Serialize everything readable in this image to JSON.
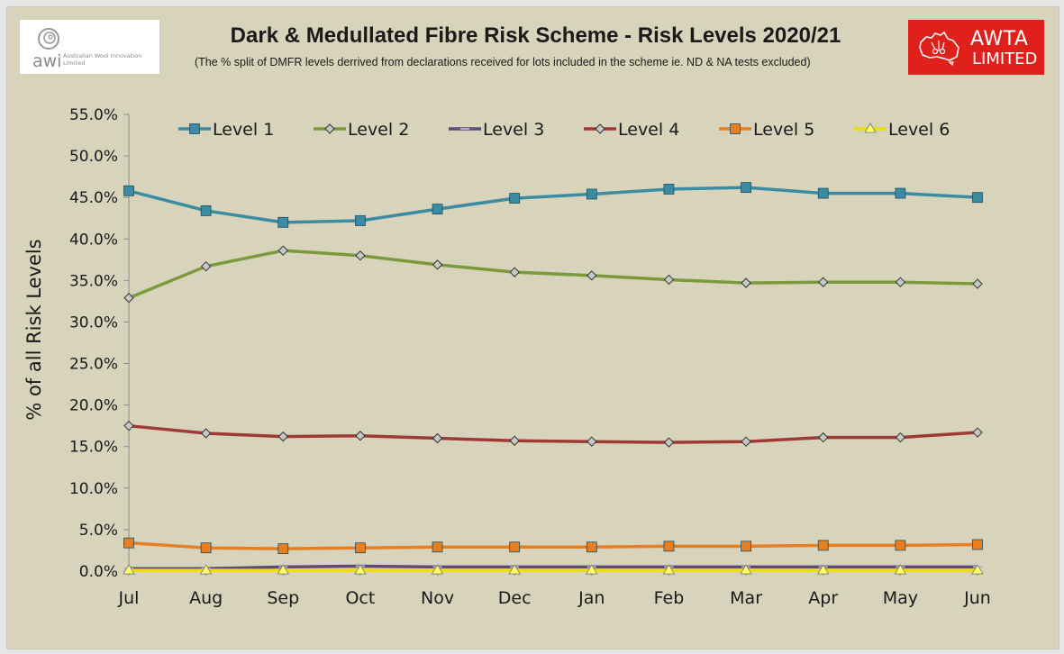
{
  "header": {
    "awi_logo": {
      "brand": "awi",
      "text": "Australian Wool Innovation Limited"
    },
    "awta_logo": {
      "line1": "AWTA",
      "line2": "LIMITED"
    },
    "title": "Dark & Medullated Fibre Risk Scheme  - Risk Levels 2020/21",
    "subtitle": "(The % split of DMFR levels derrived from declarations received for lots included in the scheme ie. ND & NA tests excluded)"
  },
  "chart_data": {
    "type": "line",
    "title": "Dark & Medullated Fibre Risk Scheme  - Risk Levels 2020/21",
    "xlabel": "",
    "ylabel": "% of all Risk Levels",
    "categories": [
      "Jul",
      "Aug",
      "Sep",
      "Oct",
      "Nov",
      "Dec",
      "Jan",
      "Feb",
      "Mar",
      "Apr",
      "May",
      "Jun"
    ],
    "ylim": [
      0,
      55
    ],
    "yticks": [
      "0.0%",
      "5.0%",
      "10.0%",
      "15.0%",
      "20.0%",
      "25.0%",
      "30.0%",
      "35.0%",
      "40.0%",
      "45.0%",
      "50.0%",
      "55.0%"
    ],
    "ytick_values": [
      0,
      5,
      10,
      15,
      20,
      25,
      30,
      35,
      40,
      45,
      50,
      55
    ],
    "grid": false,
    "legend": "top",
    "series": [
      {
        "name": "Level 1",
        "color": "#3b8ba3",
        "marker": "square",
        "values": [
          45.8,
          43.4,
          42.0,
          42.2,
          43.6,
          44.9,
          45.4,
          46.0,
          46.2,
          45.5,
          45.5,
          45.0
        ]
      },
      {
        "name": "Level 2",
        "color": "#7b9a3d",
        "marker": "diamond",
        "values": [
          32.9,
          36.7,
          38.6,
          38.0,
          36.9,
          36.0,
          35.6,
          35.1,
          34.7,
          34.8,
          34.8,
          34.6
        ]
      },
      {
        "name": "Level 3",
        "color": "#5e4a7a",
        "marker": "dash",
        "values": [
          0.3,
          0.3,
          0.5,
          0.6,
          0.5,
          0.5,
          0.5,
          0.5,
          0.5,
          0.5,
          0.5,
          0.5
        ]
      },
      {
        "name": "Level 4",
        "color": "#9e3a37",
        "marker": "diamond",
        "values": [
          17.5,
          16.6,
          16.2,
          16.3,
          16.0,
          15.7,
          15.6,
          15.5,
          15.6,
          16.1,
          16.1,
          16.7
        ]
      },
      {
        "name": "Level 5",
        "color": "#e67e22",
        "marker": "square",
        "values": [
          3.4,
          2.8,
          2.7,
          2.8,
          2.9,
          2.9,
          2.9,
          3.0,
          3.0,
          3.1,
          3.1,
          3.2
        ]
      },
      {
        "name": "Level 6",
        "color": "#f0e000",
        "marker": "triangle",
        "values": [
          0.1,
          0.1,
          0.1,
          0.1,
          0.1,
          0.1,
          0.1,
          0.1,
          0.1,
          0.1,
          0.1,
          0.1
        ]
      }
    ]
  }
}
